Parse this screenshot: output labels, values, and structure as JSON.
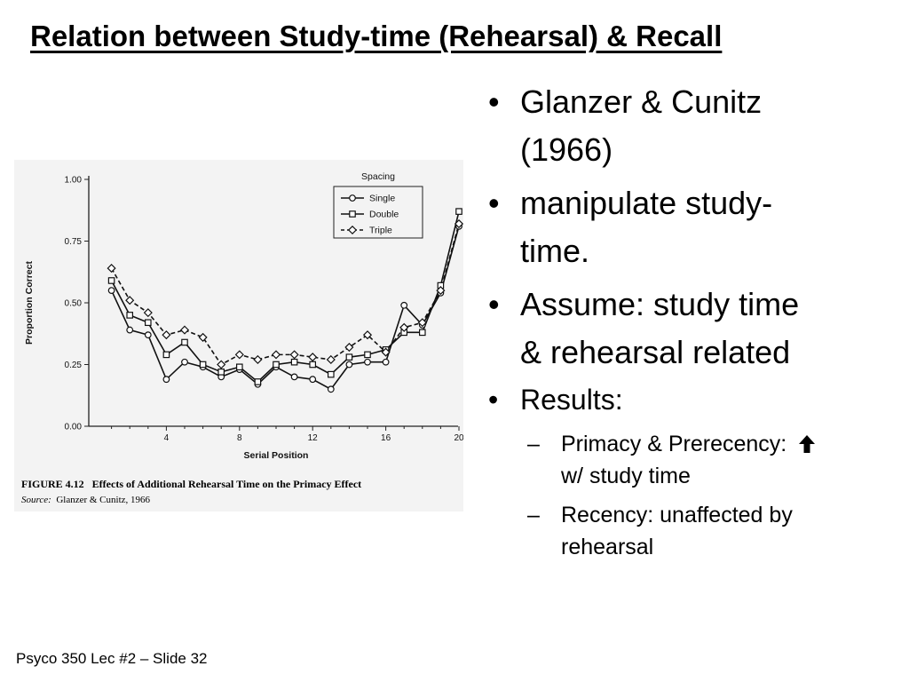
{
  "slide": {
    "title": "Relation between Study-time (Rehearsal) & Recall",
    "footer": "Psyco 350 Lec #2 – Slide 32"
  },
  "bullets": {
    "b1": [
      "Glanzer & Cunitz",
      "(1966)"
    ],
    "b2": [
      "manipulate study-",
      "time."
    ],
    "b3": [
      "Assume: study time",
      "& rehearsal related"
    ],
    "b4": "Results:",
    "sub1": [
      "Primacy & Prerecency:",
      "w/ study time"
    ],
    "sub2": [
      "Recency: unaffected by",
      "rehearsal"
    ],
    "bullet_char": "•",
    "dash_char": "–",
    "arrow_icon": "up-arrow-icon"
  },
  "figure": {
    "caption_label": "FIGURE 4.12",
    "caption_text": "Effects of Additional Rehearsal Time on the Primacy Effect",
    "source_label": "Source:",
    "source_text": "Glanzer & Cunitz, 1966"
  },
  "chart_data": {
    "type": "line",
    "xlabel": "Serial Position",
    "ylabel": "Proportion Correct",
    "xlim": [
      0,
      20
    ],
    "ylim": [
      0,
      1
    ],
    "x_ticks": [
      4,
      8,
      12,
      16,
      20
    ],
    "y_ticks": [
      "0.00",
      "0.25",
      "0.50",
      "0.75",
      "1.00"
    ],
    "x": [
      1,
      2,
      3,
      4,
      5,
      6,
      7,
      8,
      9,
      10,
      11,
      12,
      13,
      14,
      15,
      16,
      17,
      18,
      19,
      20
    ],
    "legend_title": "Spacing",
    "legend_position": "top-right",
    "grid": false,
    "series": [
      {
        "name": "Single",
        "marker": "circle",
        "dash": "solid",
        "values": [
          0.55,
          0.39,
          0.37,
          0.19,
          0.26,
          0.24,
          0.2,
          0.23,
          0.17,
          0.24,
          0.2,
          0.19,
          0.15,
          0.25,
          0.26,
          0.26,
          0.49,
          0.41,
          0.54,
          0.81
        ]
      },
      {
        "name": "Double",
        "marker": "square",
        "dash": "solid",
        "values": [
          0.59,
          0.45,
          0.42,
          0.29,
          0.34,
          0.25,
          0.22,
          0.24,
          0.18,
          0.25,
          0.26,
          0.25,
          0.21,
          0.28,
          0.29,
          0.31,
          0.38,
          0.38,
          0.57,
          0.87
        ]
      },
      {
        "name": "Triple",
        "marker": "diamond",
        "dash": "dashed",
        "values": [
          0.64,
          0.51,
          0.46,
          0.37,
          0.39,
          0.36,
          0.25,
          0.29,
          0.27,
          0.29,
          0.29,
          0.28,
          0.27,
          0.32,
          0.37,
          0.3,
          0.4,
          0.42,
          0.55,
          0.82
        ]
      }
    ]
  }
}
